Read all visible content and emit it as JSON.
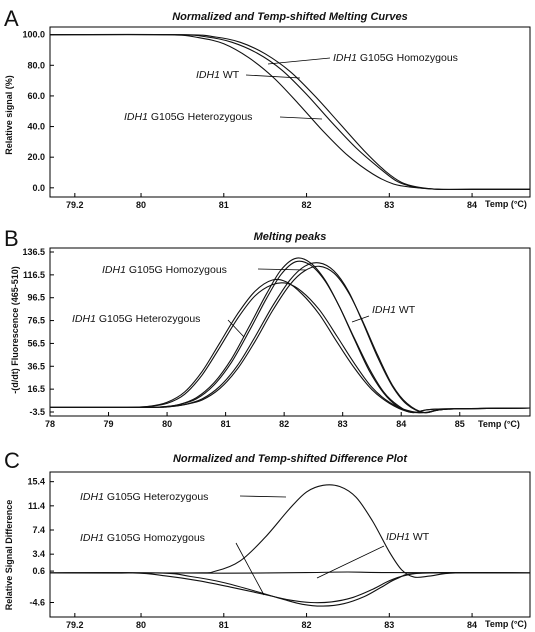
{
  "chart_data": [
    {
      "panel": "A",
      "type": "line",
      "title": "Normalized and Temp-shifted Melting Curves",
      "xlabel": "Temp (°C)",
      "ylabel": "Relative signal (%)",
      "xlim": [
        78.9,
        84.7
      ],
      "ylim": [
        -6,
        105
      ],
      "xticks": [
        "79.2",
        "80",
        "81",
        "82",
        "83",
        "84"
      ],
      "yticks": [
        "0.0",
        "20.0",
        "40.0",
        "60.0",
        "80.0",
        "100.0"
      ],
      "xtick_values": [
        79.2,
        80,
        81,
        82,
        83,
        84
      ],
      "ytick_values": [
        0,
        20,
        40,
        60,
        80,
        100
      ],
      "series": [
        {
          "name": "IDH1 WT",
          "x": [
            78.9,
            80.4,
            80.8,
            81.1,
            81.4,
            81.7,
            82.0,
            82.3,
            82.6,
            82.9,
            83.1,
            83.3,
            83.6,
            84.0,
            84.7
          ],
          "y": [
            100,
            100,
            98.5,
            95,
            88,
            77,
            61,
            43,
            26,
            12,
            4,
            0.6,
            -1,
            -1,
            -1
          ]
        },
        {
          "name": "IDH1 G105G Homozygous",
          "x": [
            78.9,
            80.5,
            80.9,
            81.2,
            81.5,
            81.8,
            82.1,
            82.4,
            82.7,
            82.95,
            83.15,
            83.35,
            83.6,
            84.0,
            84.7
          ],
          "y": [
            100,
            100,
            98.5,
            95,
            87.5,
            76,
            60,
            42,
            24,
            11,
            3.5,
            0.4,
            -1,
            -1,
            -1
          ]
        },
        {
          "name": "IDH1 G105G Heterozygous",
          "x": [
            78.9,
            80.3,
            80.7,
            81.0,
            81.3,
            81.6,
            81.9,
            82.2,
            82.5,
            82.8,
            83.05,
            83.3,
            83.6,
            84.0,
            84.7
          ],
          "y": [
            100,
            100,
            98,
            94,
            85,
            72,
            55,
            37,
            21,
            9,
            2.5,
            0.2,
            -1,
            -1,
            -1
          ]
        }
      ],
      "annotations": [
        {
          "italic": "IDH1",
          "text": " G105G Homozygous"
        },
        {
          "italic": "IDH1",
          "text": " WT"
        },
        {
          "italic": "IDH1",
          "text": " G105G Heterozygous"
        }
      ]
    },
    {
      "panel": "B",
      "type": "line",
      "title": "Melting peaks",
      "xlabel": "Temp (°C)",
      "ylabel": "-(d/dt) Fluorescence (465-510)",
      "xlim": [
        78,
        86.2
      ],
      "ylim": [
        -7,
        140
      ],
      "xticks": [
        "78",
        "79",
        "80",
        "81",
        "82",
        "83",
        "84",
        "85"
      ],
      "yticks": [
        "-3.5",
        "16.5",
        "36.5",
        "56.5",
        "76.5",
        "96.5",
        "116.5",
        "136.5"
      ],
      "xtick_values": [
        78,
        79,
        80,
        81,
        82,
        83,
        84,
        85
      ],
      "ytick_values": [
        -3.5,
        16.5,
        36.5,
        56.5,
        76.5,
        96.5,
        116.5,
        136.5
      ],
      "series": [
        {
          "name": "IDH1 WT",
          "x": [
            78.0,
            79.6,
            80.0,
            80.3,
            80.6,
            80.9,
            81.2,
            81.5,
            81.8,
            82.1,
            82.35,
            82.6,
            82.85,
            83.1,
            83.35,
            83.6,
            83.85,
            84.1,
            84.4,
            84.8,
            86.2
          ],
          "y": [
            0.5,
            0.5,
            1,
            3,
            8,
            19,
            37,
            62,
            89,
            112,
            124,
            127,
            120,
            102,
            74,
            44,
            19,
            3,
            -4,
            -1,
            0
          ]
        },
        {
          "name": "IDH1 WT",
          "x": [
            78.0,
            79.6,
            80.0,
            80.3,
            80.6,
            80.9,
            81.2,
            81.5,
            81.8,
            82.1,
            82.35,
            82.6,
            82.85,
            83.1,
            83.35,
            83.6,
            83.85,
            84.1,
            84.4,
            84.8,
            86.2
          ],
          "y": [
            0.5,
            0.5,
            1,
            3,
            7,
            17,
            34,
            58,
            85,
            108,
            120,
            124,
            118,
            101,
            75,
            46,
            20,
            4,
            -4,
            -1,
            0
          ]
        },
        {
          "name": "IDH1 G105G Homozygous",
          "x": [
            78.0,
            79.5,
            79.9,
            80.2,
            80.5,
            80.8,
            81.1,
            81.4,
            81.7,
            81.95,
            82.2,
            82.45,
            82.7,
            82.95,
            83.2,
            83.45,
            83.7,
            83.95,
            84.2,
            84.6,
            86.2
          ],
          "y": [
            0.5,
            0.5,
            1,
            3,
            9,
            22,
            43,
            71,
            100,
            121,
            131,
            127,
            112,
            88,
            60,
            33,
            13,
            1,
            -4,
            -1,
            0
          ]
        },
        {
          "name": "IDH1 G105G Homozygous",
          "x": [
            78.0,
            79.5,
            79.9,
            80.2,
            80.5,
            80.8,
            81.1,
            81.4,
            81.7,
            81.95,
            82.2,
            82.45,
            82.7,
            82.95,
            83.2,
            83.45,
            83.7,
            83.95,
            84.2,
            84.6,
            86.2
          ],
          "y": [
            0.5,
            0.5,
            1,
            3,
            8,
            20,
            40,
            67,
            96,
            117,
            128,
            125,
            111,
            88,
            61,
            35,
            14,
            2,
            -4,
            -1,
            0
          ]
        },
        {
          "name": "IDH1 G105G Heterozygous",
          "x": [
            78.0,
            79.3,
            79.7,
            80.0,
            80.3,
            80.6,
            80.9,
            81.2,
            81.5,
            81.8,
            82.05,
            82.3,
            82.6,
            82.9,
            83.2,
            83.5,
            83.8,
            84.1,
            84.4,
            84.8,
            86.2
          ],
          "y": [
            0.5,
            0.5,
            1.5,
            5,
            14,
            32,
            57,
            82,
            102,
            112,
            110,
            100,
            82,
            58,
            35,
            16,
            4,
            -3,
            -4,
            -1,
            0
          ]
        },
        {
          "name": "IDH1 G105G Heterozygous",
          "x": [
            78.0,
            79.3,
            79.7,
            80.0,
            80.3,
            80.6,
            80.9,
            81.2,
            81.5,
            81.8,
            82.05,
            82.3,
            82.6,
            82.9,
            83.2,
            83.5,
            83.8,
            84.1,
            84.4,
            84.8,
            86.2
          ],
          "y": [
            0.5,
            0.5,
            1.5,
            4,
            12,
            29,
            53,
            78,
            98,
            108,
            109,
            102,
            86,
            63,
            39,
            18,
            5,
            -2,
            -4,
            -1,
            0
          ]
        }
      ],
      "annotations": [
        {
          "italic": "IDH1",
          "text": " G105G Homozygous"
        },
        {
          "italic": "IDH1",
          "text": " G105G Heterozygous"
        },
        {
          "italic": "IDH1",
          "text": " WT"
        }
      ]
    },
    {
      "panel": "C",
      "type": "line",
      "title": "Normalized and Temp-shifted Difference Plot",
      "xlabel": "Temp (°C)",
      "ylabel": "Relative Signal Difference",
      "xlim": [
        78.9,
        84.7
      ],
      "ylim": [
        -7,
        17
      ],
      "xticks": [
        "79.2",
        "80",
        "81",
        "82",
        "83",
        "84"
      ],
      "yticks": [
        "-4.6",
        "0.6",
        "3.4",
        "7.4",
        "11.4",
        "15.4"
      ],
      "xtick_values": [
        79.2,
        80,
        81,
        82,
        83,
        84
      ],
      "ytick_values": [
        -4.6,
        0.6,
        3.4,
        7.4,
        11.4,
        15.4
      ],
      "series": [
        {
          "name": "IDH1 WT",
          "x": [
            78.9,
            80.0,
            81.0,
            82.0,
            82.5,
            83.0,
            84.7
          ],
          "y": [
            0.3,
            0.3,
            0.25,
            0.35,
            0.45,
            0.35,
            0.3
          ]
        },
        {
          "name": "IDH1 G105G Heterozygous",
          "x": [
            78.9,
            80.6,
            80.9,
            81.2,
            81.5,
            81.8,
            82.0,
            82.2,
            82.4,
            82.6,
            82.8,
            83.0,
            83.15,
            83.3,
            83.5,
            83.8,
            84.7
          ],
          "y": [
            0.3,
            0.3,
            0.6,
            2.3,
            6.2,
            11,
            13.7,
            14.8,
            14.6,
            12.8,
            8.8,
            3.8,
            0.8,
            -0.4,
            -0.2,
            0.3,
            0.3
          ]
        },
        {
          "name": "IDH1 G105G Homozygous",
          "x": [
            78.9,
            79.9,
            80.3,
            80.7,
            81.1,
            81.5,
            81.8,
            82.05,
            82.3,
            82.55,
            82.8,
            83.0,
            83.2,
            83.5,
            84.7
          ],
          "y": [
            0.3,
            0.3,
            -0.2,
            -1.0,
            -2.1,
            -3.3,
            -4.2,
            -4.6,
            -4.5,
            -3.8,
            -2.4,
            -1.0,
            -0.1,
            0.3,
            0.3
          ]
        },
        {
          "name": "IDH1 G105G Homozygous",
          "x": [
            78.9,
            80.2,
            80.6,
            81.0,
            81.4,
            81.7,
            81.95,
            82.2,
            82.45,
            82.7,
            82.9,
            83.1,
            83.4,
            84.7
          ],
          "y": [
            0.3,
            0.3,
            -0.3,
            -1.3,
            -2.8,
            -4.0,
            -4.9,
            -5.2,
            -4.8,
            -3.6,
            -2.1,
            -0.6,
            0.3,
            0.3
          ]
        }
      ],
      "annotations": [
        {
          "italic": "IDH1",
          "text": " G105G Heterozygous"
        },
        {
          "italic": "IDH1",
          "text": " WT"
        },
        {
          "italic": "IDH1",
          "text": " G105G Homozygous"
        }
      ]
    }
  ]
}
